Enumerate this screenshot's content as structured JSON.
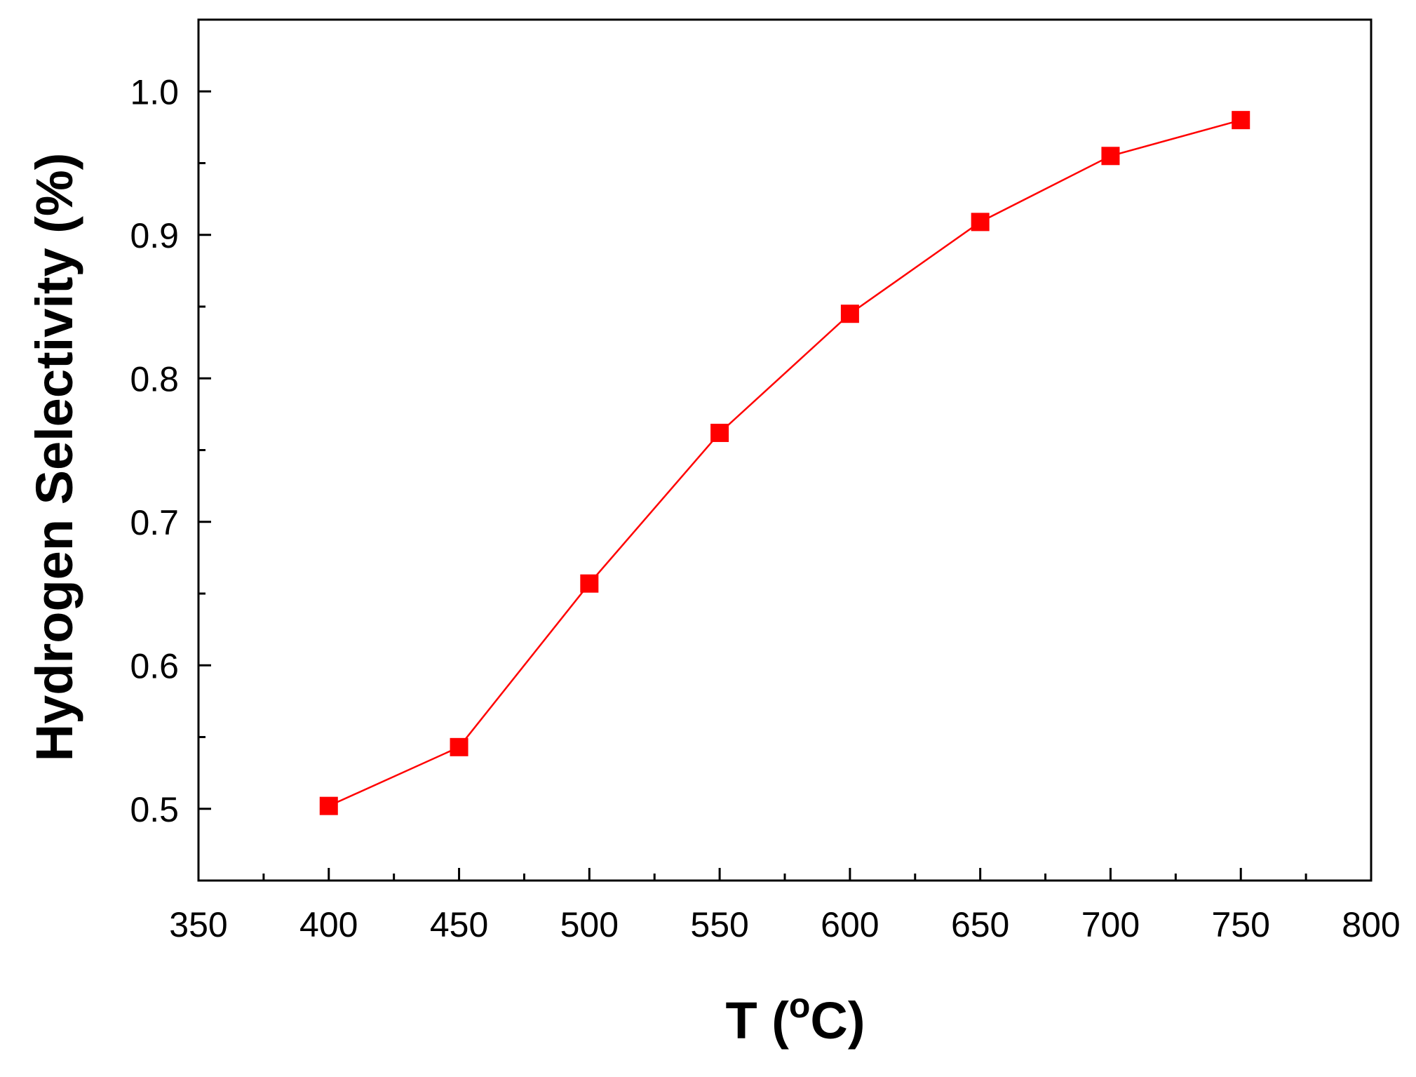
{
  "chart_data": {
    "type": "line",
    "title": "",
    "xlabel_main": "T (",
    "xlabel_sup": "o",
    "xlabel_end": "C)",
    "ylabel": "Hydrogen Selectivity (%)",
    "xlim": [
      350,
      800
    ],
    "ylim": [
      0.45,
      1.05
    ],
    "x_ticks": [
      350,
      400,
      450,
      500,
      550,
      600,
      650,
      700,
      750,
      800
    ],
    "x_tick_labels": [
      "350",
      "400",
      "450",
      "500",
      "550",
      "600",
      "650",
      "700",
      "750",
      "800"
    ],
    "y_ticks": [
      0.5,
      0.6,
      0.7,
      0.8,
      0.9,
      1.0
    ],
    "y_tick_labels": [
      "0.5",
      "0.6",
      "0.7",
      "0.8",
      "0.9",
      "1.0"
    ],
    "x_minor_ticks": [
      375,
      425,
      475,
      525,
      575,
      625,
      675,
      725,
      775
    ],
    "y_minor_ticks": [
      0.55,
      0.65,
      0.75,
      0.85,
      0.95
    ],
    "grid": false,
    "series": [
      {
        "marker": "square",
        "color": "#ff0000",
        "x": [
          400,
          450,
          500,
          550,
          600,
          650,
          700,
          750
        ],
        "y": [
          0.502,
          0.543,
          0.657,
          0.762,
          0.845,
          0.909,
          0.955,
          0.98
        ]
      }
    ]
  }
}
